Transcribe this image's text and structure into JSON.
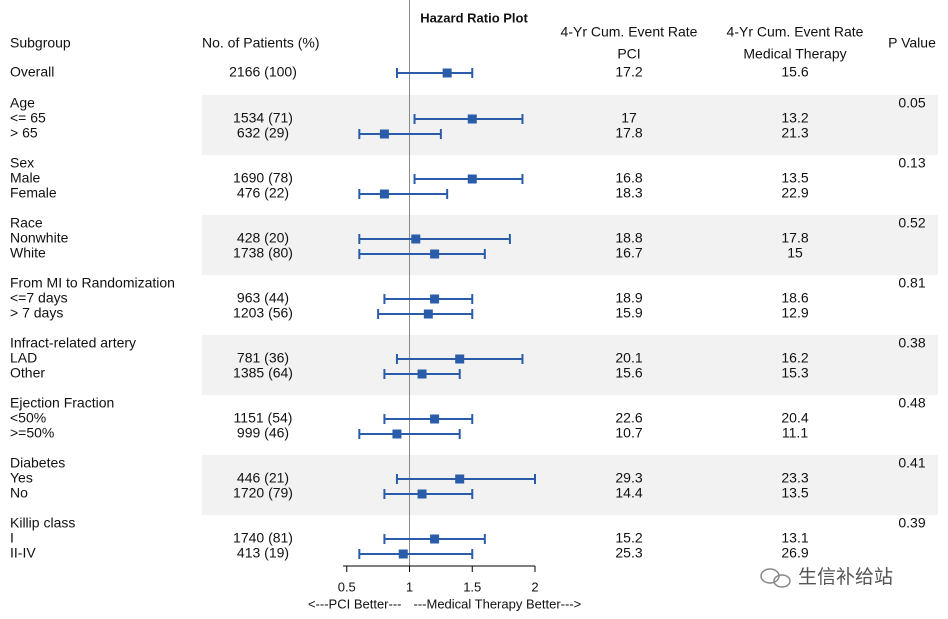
{
  "chart_data": {
    "type": "forest",
    "title": "Hazard Ratio Plot",
    "columns": {
      "subgroup": "Subgroup",
      "patients": "No. of Patients (%)",
      "rate_heading_pci": "4-Yr Cum. Event Rate",
      "pci": "PCI",
      "rate_heading_med": "4-Yr Cum. Event Rate",
      "med": "Medical Therapy",
      "p": "P Value"
    },
    "xlim": [
      0.47,
      2
    ],
    "xticks": [
      0.5,
      1,
      1.5,
      2
    ],
    "ref_line": 1,
    "x_label_left": "<---PCI Better---",
    "x_label_right": "---Medical Therapy Better--->",
    "color": "#2a5caa",
    "shade_color": "#f2f2f2",
    "overall": {
      "label": "Overall",
      "patients": "2166 (100)",
      "pci": 17.2,
      "med": 15.6,
      "hr": 1.3,
      "lower": 0.9,
      "upper": 1.5
    },
    "groups": [
      {
        "label": "Age",
        "p": 0.05,
        "rows": [
          {
            "label": "<= 65",
            "patients": "1534 (71)",
            "pci": 17,
            "med": 13.2,
            "hr": 1.5,
            "lower": 1.04,
            "upper": 1.9
          },
          {
            "label": "> 65",
            "patients": "632 (29)",
            "pci": 17.8,
            "med": 21.3,
            "hr": 0.8,
            "lower": 0.6,
            "upper": 1.25
          }
        ]
      },
      {
        "label": "Sex",
        "p": 0.13,
        "rows": [
          {
            "label": "Male",
            "patients": "1690 (78)",
            "pci": 16.8,
            "med": 13.5,
            "hr": 1.5,
            "lower": 1.04,
            "upper": 1.9
          },
          {
            "label": "Female",
            "patients": "476 (22)",
            "pci": 18.3,
            "med": 22.9,
            "hr": 0.8,
            "lower": 0.6,
            "upper": 1.3
          }
        ]
      },
      {
        "label": "Race",
        "p": 0.52,
        "rows": [
          {
            "label": "Nonwhite",
            "patients": "428 (20)",
            "pci": 18.8,
            "med": 17.8,
            "hr": 1.05,
            "lower": 0.6,
            "upper": 1.8
          },
          {
            "label": "White",
            "patients": "1738 (80)",
            "pci": 16.7,
            "med": 15,
            "hr": 1.2,
            "lower": 0.6,
            "upper": 1.6
          }
        ]
      },
      {
        "label": "From MI to Randomization",
        "p": 0.81,
        "rows": [
          {
            "label": "<=7 days",
            "patients": "963 (44)",
            "pci": 18.9,
            "med": 18.6,
            "hr": 1.2,
            "lower": 0.8,
            "upper": 1.5
          },
          {
            "label": "> 7 days",
            "patients": "1203 (56)",
            "pci": 15.9,
            "med": 12.9,
            "hr": 1.15,
            "lower": 0.75,
            "upper": 1.5
          }
        ]
      },
      {
        "label": "Infract-related artery",
        "p": 0.38,
        "rows": [
          {
            "label": "LAD",
            "patients": "781 (36)",
            "pci": 20.1,
            "med": 16.2,
            "hr": 1.4,
            "lower": 0.9,
            "upper": 1.9
          },
          {
            "label": "Other",
            "patients": "1385 (64)",
            "pci": 15.6,
            "med": 15.3,
            "hr": 1.1,
            "lower": 0.8,
            "upper": 1.4
          }
        ]
      },
      {
        "label": "Ejection Fraction",
        "p": 0.48,
        "rows": [
          {
            "label": "<50%",
            "patients": "1151 (54)",
            "pci": 22.6,
            "med": 20.4,
            "hr": 1.2,
            "lower": 0.8,
            "upper": 1.5
          },
          {
            "label": ">=50%",
            "patients": "999 (46)",
            "pci": 10.7,
            "med": 11.1,
            "hr": 0.9,
            "lower": 0.6,
            "upper": 1.4
          }
        ]
      },
      {
        "label": "Diabetes",
        "p": 0.41,
        "rows": [
          {
            "label": "Yes",
            "patients": "446 (21)",
            "pci": 29.3,
            "med": 23.3,
            "hr": 1.4,
            "lower": 0.9,
            "upper": 2
          },
          {
            "label": "No",
            "patients": "1720 (79)",
            "pci": 14.4,
            "med": 13.5,
            "hr": 1.1,
            "lower": 0.8,
            "upper": 1.5
          }
        ]
      },
      {
        "label": "Killip class",
        "p": 0.39,
        "rows": [
          {
            "label": "I",
            "patients": "1740 (81)",
            "pci": 15.2,
            "med": 13.1,
            "hr": 1.2,
            "lower": 0.8,
            "upper": 1.6
          },
          {
            "label": "II-IV",
            "patients": "413 (19)",
            "pci": 25.3,
            "med": 26.9,
            "hr": 0.95,
            "lower": 0.6,
            "upper": 1.5
          }
        ]
      }
    ],
    "watermark": "生信补给站"
  }
}
